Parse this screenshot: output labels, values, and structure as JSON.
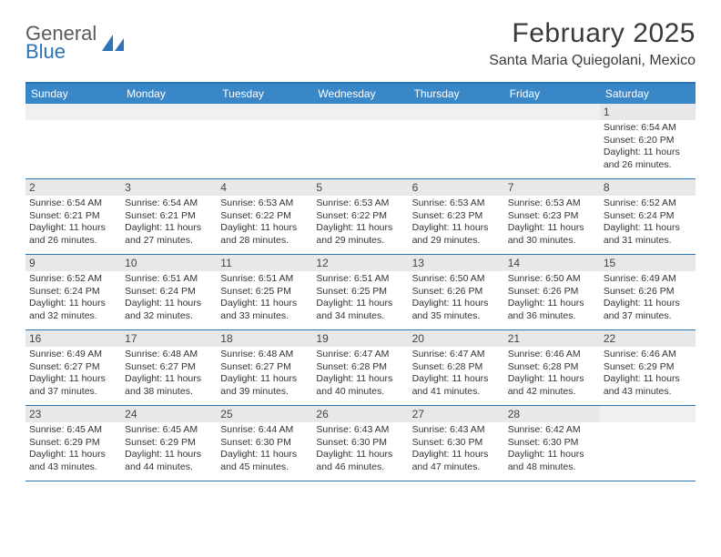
{
  "logo": {
    "line1": "General",
    "line2": "Blue"
  },
  "title": "February 2025",
  "location": "Santa Maria Quiegolani, Mexico",
  "colors": {
    "header_bar": "#3a87c8",
    "rule": "#2b74b8",
    "daynum_bg": "#e8e8e8",
    "text": "#333333",
    "logo_gray": "#5a5a5a",
    "logo_blue": "#2b74b8"
  },
  "weekdays": [
    "Sunday",
    "Monday",
    "Tuesday",
    "Wednesday",
    "Thursday",
    "Friday",
    "Saturday"
  ],
  "weeks": [
    [
      {
        "n": "",
        "empty": true
      },
      {
        "n": "",
        "empty": true
      },
      {
        "n": "",
        "empty": true
      },
      {
        "n": "",
        "empty": true
      },
      {
        "n": "",
        "empty": true
      },
      {
        "n": "",
        "empty": true
      },
      {
        "n": "1",
        "sunrise": "Sunrise: 6:54 AM",
        "sunset": "Sunset: 6:20 PM",
        "daylight": "Daylight: 11 hours and 26 minutes."
      }
    ],
    [
      {
        "n": "2",
        "sunrise": "Sunrise: 6:54 AM",
        "sunset": "Sunset: 6:21 PM",
        "daylight": "Daylight: 11 hours and 26 minutes."
      },
      {
        "n": "3",
        "sunrise": "Sunrise: 6:54 AM",
        "sunset": "Sunset: 6:21 PM",
        "daylight": "Daylight: 11 hours and 27 minutes."
      },
      {
        "n": "4",
        "sunrise": "Sunrise: 6:53 AM",
        "sunset": "Sunset: 6:22 PM",
        "daylight": "Daylight: 11 hours and 28 minutes."
      },
      {
        "n": "5",
        "sunrise": "Sunrise: 6:53 AM",
        "sunset": "Sunset: 6:22 PM",
        "daylight": "Daylight: 11 hours and 29 minutes."
      },
      {
        "n": "6",
        "sunrise": "Sunrise: 6:53 AM",
        "sunset": "Sunset: 6:23 PM",
        "daylight": "Daylight: 11 hours and 29 minutes."
      },
      {
        "n": "7",
        "sunrise": "Sunrise: 6:53 AM",
        "sunset": "Sunset: 6:23 PM",
        "daylight": "Daylight: 11 hours and 30 minutes."
      },
      {
        "n": "8",
        "sunrise": "Sunrise: 6:52 AM",
        "sunset": "Sunset: 6:24 PM",
        "daylight": "Daylight: 11 hours and 31 minutes."
      }
    ],
    [
      {
        "n": "9",
        "sunrise": "Sunrise: 6:52 AM",
        "sunset": "Sunset: 6:24 PM",
        "daylight": "Daylight: 11 hours and 32 minutes."
      },
      {
        "n": "10",
        "sunrise": "Sunrise: 6:51 AM",
        "sunset": "Sunset: 6:24 PM",
        "daylight": "Daylight: 11 hours and 32 minutes."
      },
      {
        "n": "11",
        "sunrise": "Sunrise: 6:51 AM",
        "sunset": "Sunset: 6:25 PM",
        "daylight": "Daylight: 11 hours and 33 minutes."
      },
      {
        "n": "12",
        "sunrise": "Sunrise: 6:51 AM",
        "sunset": "Sunset: 6:25 PM",
        "daylight": "Daylight: 11 hours and 34 minutes."
      },
      {
        "n": "13",
        "sunrise": "Sunrise: 6:50 AM",
        "sunset": "Sunset: 6:26 PM",
        "daylight": "Daylight: 11 hours and 35 minutes."
      },
      {
        "n": "14",
        "sunrise": "Sunrise: 6:50 AM",
        "sunset": "Sunset: 6:26 PM",
        "daylight": "Daylight: 11 hours and 36 minutes."
      },
      {
        "n": "15",
        "sunrise": "Sunrise: 6:49 AM",
        "sunset": "Sunset: 6:26 PM",
        "daylight": "Daylight: 11 hours and 37 minutes."
      }
    ],
    [
      {
        "n": "16",
        "sunrise": "Sunrise: 6:49 AM",
        "sunset": "Sunset: 6:27 PM",
        "daylight": "Daylight: 11 hours and 37 minutes."
      },
      {
        "n": "17",
        "sunrise": "Sunrise: 6:48 AM",
        "sunset": "Sunset: 6:27 PM",
        "daylight": "Daylight: 11 hours and 38 minutes."
      },
      {
        "n": "18",
        "sunrise": "Sunrise: 6:48 AM",
        "sunset": "Sunset: 6:27 PM",
        "daylight": "Daylight: 11 hours and 39 minutes."
      },
      {
        "n": "19",
        "sunrise": "Sunrise: 6:47 AM",
        "sunset": "Sunset: 6:28 PM",
        "daylight": "Daylight: 11 hours and 40 minutes."
      },
      {
        "n": "20",
        "sunrise": "Sunrise: 6:47 AM",
        "sunset": "Sunset: 6:28 PM",
        "daylight": "Daylight: 11 hours and 41 minutes."
      },
      {
        "n": "21",
        "sunrise": "Sunrise: 6:46 AM",
        "sunset": "Sunset: 6:28 PM",
        "daylight": "Daylight: 11 hours and 42 minutes."
      },
      {
        "n": "22",
        "sunrise": "Sunrise: 6:46 AM",
        "sunset": "Sunset: 6:29 PM",
        "daylight": "Daylight: 11 hours and 43 minutes."
      }
    ],
    [
      {
        "n": "23",
        "sunrise": "Sunrise: 6:45 AM",
        "sunset": "Sunset: 6:29 PM",
        "daylight": "Daylight: 11 hours and 43 minutes."
      },
      {
        "n": "24",
        "sunrise": "Sunrise: 6:45 AM",
        "sunset": "Sunset: 6:29 PM",
        "daylight": "Daylight: 11 hours and 44 minutes."
      },
      {
        "n": "25",
        "sunrise": "Sunrise: 6:44 AM",
        "sunset": "Sunset: 6:30 PM",
        "daylight": "Daylight: 11 hours and 45 minutes."
      },
      {
        "n": "26",
        "sunrise": "Sunrise: 6:43 AM",
        "sunset": "Sunset: 6:30 PM",
        "daylight": "Daylight: 11 hours and 46 minutes."
      },
      {
        "n": "27",
        "sunrise": "Sunrise: 6:43 AM",
        "sunset": "Sunset: 6:30 PM",
        "daylight": "Daylight: 11 hours and 47 minutes."
      },
      {
        "n": "28",
        "sunrise": "Sunrise: 6:42 AM",
        "sunset": "Sunset: 6:30 PM",
        "daylight": "Daylight: 11 hours and 48 minutes."
      },
      {
        "n": "",
        "empty": true
      }
    ]
  ]
}
